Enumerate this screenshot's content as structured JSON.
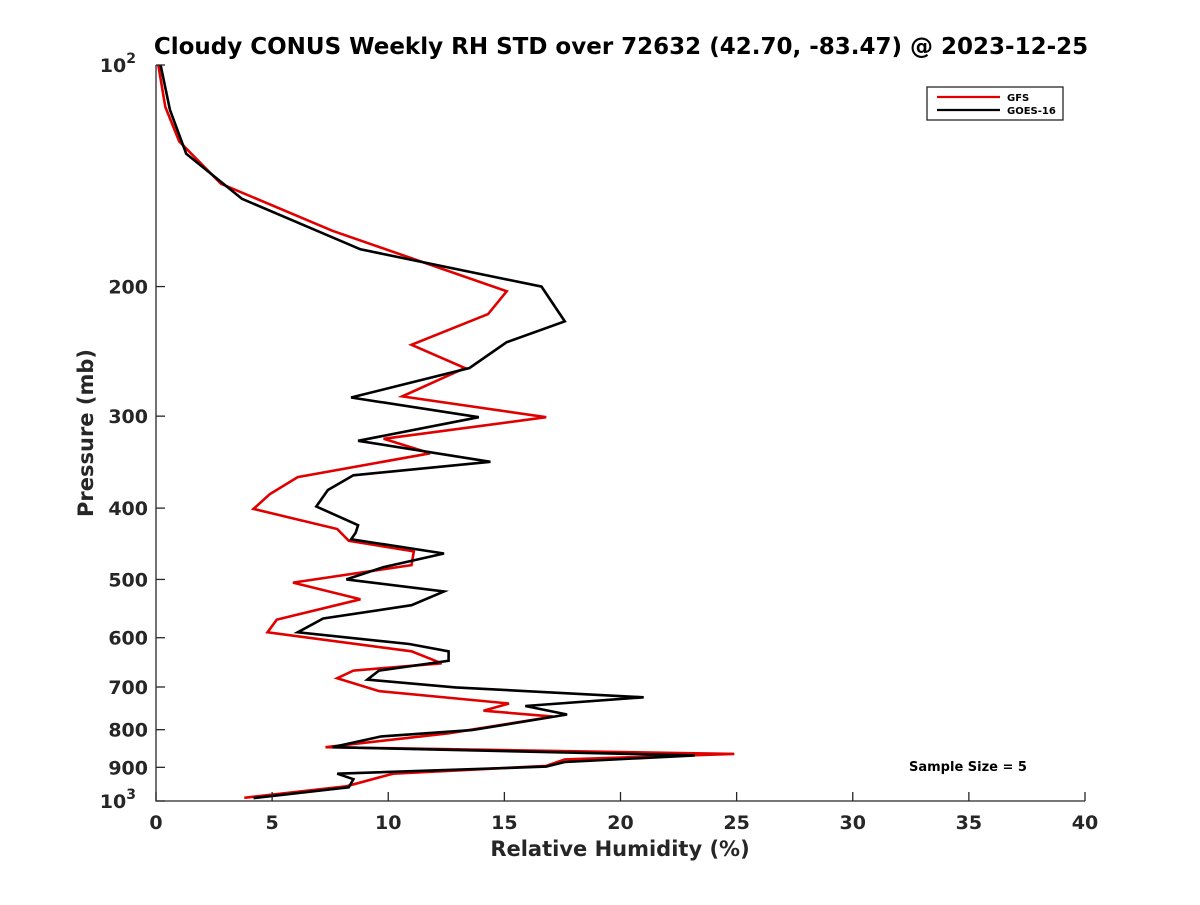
{
  "chart_data": {
    "type": "line",
    "title": "Cloudy CONUS Weekly RH STD over 72632 (42.70, -83.47) @ 2023-12-25",
    "xlabel": "Relative Humidity (%)",
    "ylabel": "Pressure (mb)",
    "xlim": [
      0,
      40
    ],
    "ylim": [
      100,
      1000
    ],
    "y_scale": "log",
    "y_reversed": true,
    "grid": false,
    "legend_position": "top-right",
    "x_ticks": [
      {
        "value": 0,
        "label": "0"
      },
      {
        "value": 5,
        "label": "5"
      },
      {
        "value": 10,
        "label": "10"
      },
      {
        "value": 15,
        "label": "15"
      },
      {
        "value": 20,
        "label": "20"
      },
      {
        "value": 25,
        "label": "25"
      },
      {
        "value": 30,
        "label": "30"
      },
      {
        "value": 35,
        "label": "35"
      },
      {
        "value": 40,
        "label": "40"
      }
    ],
    "y_ticks": [
      {
        "value": 100,
        "base": "10",
        "exp": "2"
      },
      {
        "value": 200,
        "base": "200",
        "exp": ""
      },
      {
        "value": 300,
        "base": "300",
        "exp": ""
      },
      {
        "value": 400,
        "base": "400",
        "exp": ""
      },
      {
        "value": 500,
        "base": "500",
        "exp": ""
      },
      {
        "value": 600,
        "base": "600",
        "exp": ""
      },
      {
        "value": 700,
        "base": "700",
        "exp": ""
      },
      {
        "value": 800,
        "base": "800",
        "exp": ""
      },
      {
        "value": 900,
        "base": "900",
        "exp": ""
      },
      {
        "value": 1000,
        "base": "10",
        "exp": "3"
      }
    ],
    "annotation": "Sample Size = 5",
    "series": [
      {
        "name": "GFS",
        "color": "#e00000",
        "points": [
          [
            0.1,
            100
          ],
          [
            0.4,
            114
          ],
          [
            1.0,
            127
          ],
          [
            2.8,
            145
          ],
          [
            7.6,
            168
          ],
          [
            15.1,
            203
          ],
          [
            14.3,
            218
          ],
          [
            11.0,
            240
          ],
          [
            13.3,
            258
          ],
          [
            10.6,
            282
          ],
          [
            16.8,
            301
          ],
          [
            9.8,
            322
          ],
          [
            11.8,
            337
          ],
          [
            6.1,
            363
          ],
          [
            4.9,
            383
          ],
          [
            4.2,
            401
          ],
          [
            7.8,
            427
          ],
          [
            8.3,
            443
          ],
          [
            11.1,
            458
          ],
          [
            11.0,
            478
          ],
          [
            5.9,
            505
          ],
          [
            8.8,
            532
          ],
          [
            5.2,
            567
          ],
          [
            4.8,
            590
          ],
          [
            11.0,
            626
          ],
          [
            12.3,
            650
          ],
          [
            8.5,
            665
          ],
          [
            7.8,
            681
          ],
          [
            9.6,
            709
          ],
          [
            15.2,
            737
          ],
          [
            14.1,
            754
          ],
          [
            17.1,
            768
          ],
          [
            12.6,
            809
          ],
          [
            7.3,
            845
          ],
          [
            24.9,
            863
          ],
          [
            17.6,
            878
          ],
          [
            16.8,
            896
          ],
          [
            10.2,
            918
          ],
          [
            8.2,
            955
          ],
          [
            3.8,
            990
          ]
        ]
      },
      {
        "name": "GOES-16",
        "color": "#000000",
        "points": [
          [
            0.2,
            100
          ],
          [
            0.6,
            115
          ],
          [
            1.3,
            132
          ],
          [
            3.7,
            152
          ],
          [
            8.8,
            178
          ],
          [
            16.6,
            200
          ],
          [
            17.6,
            223
          ],
          [
            15.1,
            238
          ],
          [
            13.5,
            258
          ],
          [
            8.4,
            283
          ],
          [
            13.9,
            301
          ],
          [
            8.7,
            324
          ],
          [
            14.4,
            346
          ],
          [
            8.5,
            361
          ],
          [
            7.4,
            378
          ],
          [
            6.9,
            398
          ],
          [
            8.7,
            422
          ],
          [
            8.6,
            432
          ],
          [
            8.4,
            441
          ],
          [
            12.4,
            461
          ],
          [
            9.8,
            481
          ],
          [
            8.2,
            500
          ],
          [
            12.4,
            519
          ],
          [
            11.0,
            542
          ],
          [
            7.2,
            565
          ],
          [
            6.1,
            590
          ],
          [
            10.9,
            612
          ],
          [
            12.6,
            626
          ],
          [
            12.6,
            645
          ],
          [
            9.6,
            665
          ],
          [
            9.1,
            684
          ],
          [
            12.9,
            701
          ],
          [
            21.0,
            723
          ],
          [
            15.9,
            743
          ],
          [
            17.7,
            763
          ],
          [
            13.6,
            801
          ],
          [
            9.7,
            817
          ],
          [
            7.6,
            845
          ],
          [
            23.2,
            867
          ],
          [
            17.6,
            885
          ],
          [
            16.8,
            898
          ],
          [
            7.8,
            918
          ],
          [
            8.5,
            934
          ],
          [
            8.3,
            958
          ],
          [
            4.2,
            991
          ]
        ]
      }
    ]
  }
}
